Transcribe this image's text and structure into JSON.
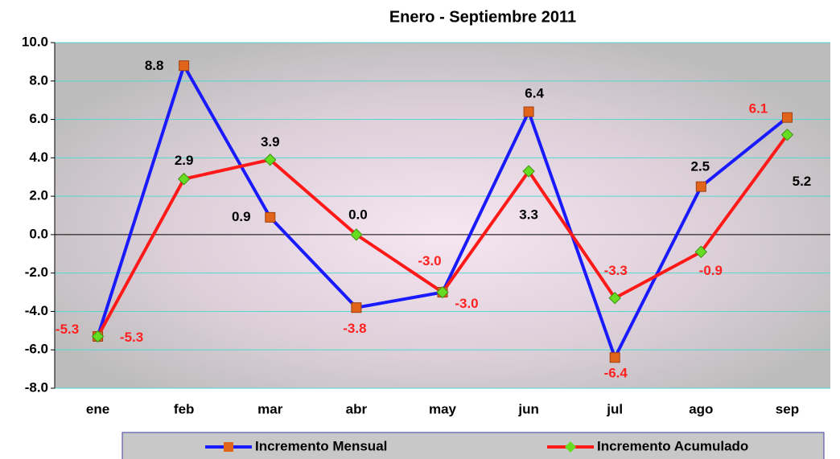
{
  "chart_data": {
    "type": "line",
    "title": "Enero - Septiembre  2011",
    "categories": [
      "ene",
      "feb",
      "mar",
      "abr",
      "may",
      "jun",
      "jul",
      "ago",
      "sep"
    ],
    "series": [
      {
        "name": "Incremento Mensual",
        "color": "#1a1aff",
        "marker_color": "#e0641a",
        "marker": "square",
        "values": [
          -5.3,
          8.8,
          0.9,
          -3.8,
          -3.0,
          6.4,
          -6.4,
          2.5,
          6.1
        ],
        "value_labels": [
          "-5.3",
          "8.8",
          "0.9",
          "-3.8",
          "-3.0",
          "6.4",
          "-6.4",
          "2.5",
          "6.1"
        ],
        "label_colors": [
          "#ff2020",
          "#000000",
          "#000000",
          "#ff2020",
          "#ff2020",
          "#000000",
          "#ff2020",
          "#000000",
          "#ff2020"
        ]
      },
      {
        "name": "Incremento Acumulado",
        "color": "#ff1a1a",
        "marker_color": "#66dd22",
        "marker": "diamond",
        "values": [
          -5.3,
          2.9,
          3.9,
          0.0,
          -3.0,
          3.3,
          -3.3,
          -0.9,
          5.2
        ],
        "value_labels": [
          "-5.3",
          "2.9",
          "3.9",
          "0.0",
          "-3.0",
          "3.3",
          "-3.3",
          "-0.9",
          "5.2"
        ],
        "label_colors": [
          "#ff2020",
          "#000000",
          "#000000",
          "#000000",
          "#ff2020",
          "#000000",
          "#ff2020",
          "#ff2020",
          "#000000"
        ]
      }
    ],
    "ylim": [
      -8,
      10
    ],
    "yticks": [
      {
        "value": -8,
        "label": "-8.0"
      },
      {
        "value": -6,
        "label": "-6.0"
      },
      {
        "value": -4,
        "label": "-4.0"
      },
      {
        "value": -2,
        "label": "-2.0"
      },
      {
        "value": 0,
        "label": "0.0"
      },
      {
        "value": 2,
        "label": "2.0"
      },
      {
        "value": 4,
        "label": "4.0"
      },
      {
        "value": 6,
        "label": "6.0"
      },
      {
        "value": 8,
        "label": "8.0"
      },
      {
        "value": 10,
        "label": "10.0"
      }
    ],
    "grid": true,
    "legend": "bottom"
  }
}
